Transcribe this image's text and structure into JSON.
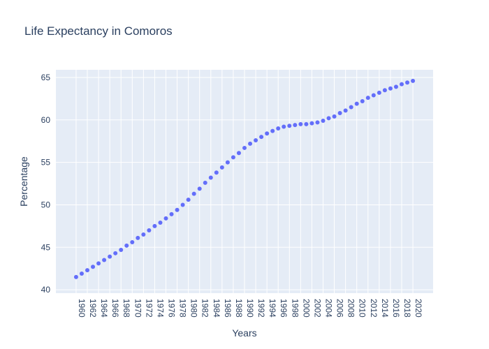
{
  "chart_data": {
    "type": "scatter",
    "title": "Life Expectancy in Comoros",
    "xlabel": "Years",
    "ylabel": "Percentage",
    "xlim": [
      1958.4,
      1964.6
    ],
    "ylim": [
      39.6,
      65.9
    ],
    "yticks": [
      40,
      45,
      50,
      55,
      60,
      65
    ],
    "xticks": [
      1960,
      1962,
      1964,
      1966,
      1968,
      1970,
      1972,
      1974,
      1976,
      1978,
      1980,
      1982,
      1984,
      1986,
      1988,
      1990,
      1992,
      1994,
      1996,
      1998,
      2000,
      2002,
      2004,
      2006,
      2008,
      2010,
      2012,
      2014,
      2016,
      2018,
      2020
    ],
    "grid": true,
    "legend": "none",
    "marker_color": "#636efa",
    "plot_bgcolor": "#e5ecf6",
    "x": [
      1960,
      1961,
      1962,
      1963,
      1964,
      1965,
      1966,
      1967,
      1968,
      1969,
      1970,
      1971,
      1972,
      1973,
      1974,
      1975,
      1976,
      1977,
      1978,
      1979,
      1980,
      1981,
      1982,
      1983,
      1984,
      1985,
      1986,
      1987,
      1988,
      1989,
      1990,
      1991,
      1992,
      1993,
      1994,
      1995,
      1996,
      1997,
      1998,
      1999,
      2000,
      2001,
      2002,
      2003,
      2004,
      2005,
      2006,
      2007,
      2008,
      2009,
      2010,
      2011,
      2012,
      2013,
      2014,
      2015,
      2016,
      2017,
      2018,
      2019,
      2020
    ],
    "y": [
      41.5,
      41.9,
      42.3,
      42.7,
      43.1,
      43.5,
      43.9,
      44.3,
      44.7,
      45.2,
      45.6,
      46.1,
      46.5,
      47.0,
      47.5,
      47.9,
      48.4,
      48.9,
      49.4,
      50.0,
      50.6,
      51.3,
      51.9,
      52.6,
      53.2,
      53.8,
      54.4,
      55.0,
      55.6,
      56.1,
      56.7,
      57.2,
      57.6,
      58.0,
      58.4,
      58.7,
      59.0,
      59.2,
      59.3,
      59.4,
      59.5,
      59.5,
      59.6,
      59.7,
      59.9,
      60.2,
      60.4,
      60.8,
      61.1,
      61.5,
      61.9,
      62.2,
      62.6,
      62.9,
      63.2,
      63.5,
      63.7,
      63.9,
      64.2,
      64.4,
      64.6
    ]
  }
}
